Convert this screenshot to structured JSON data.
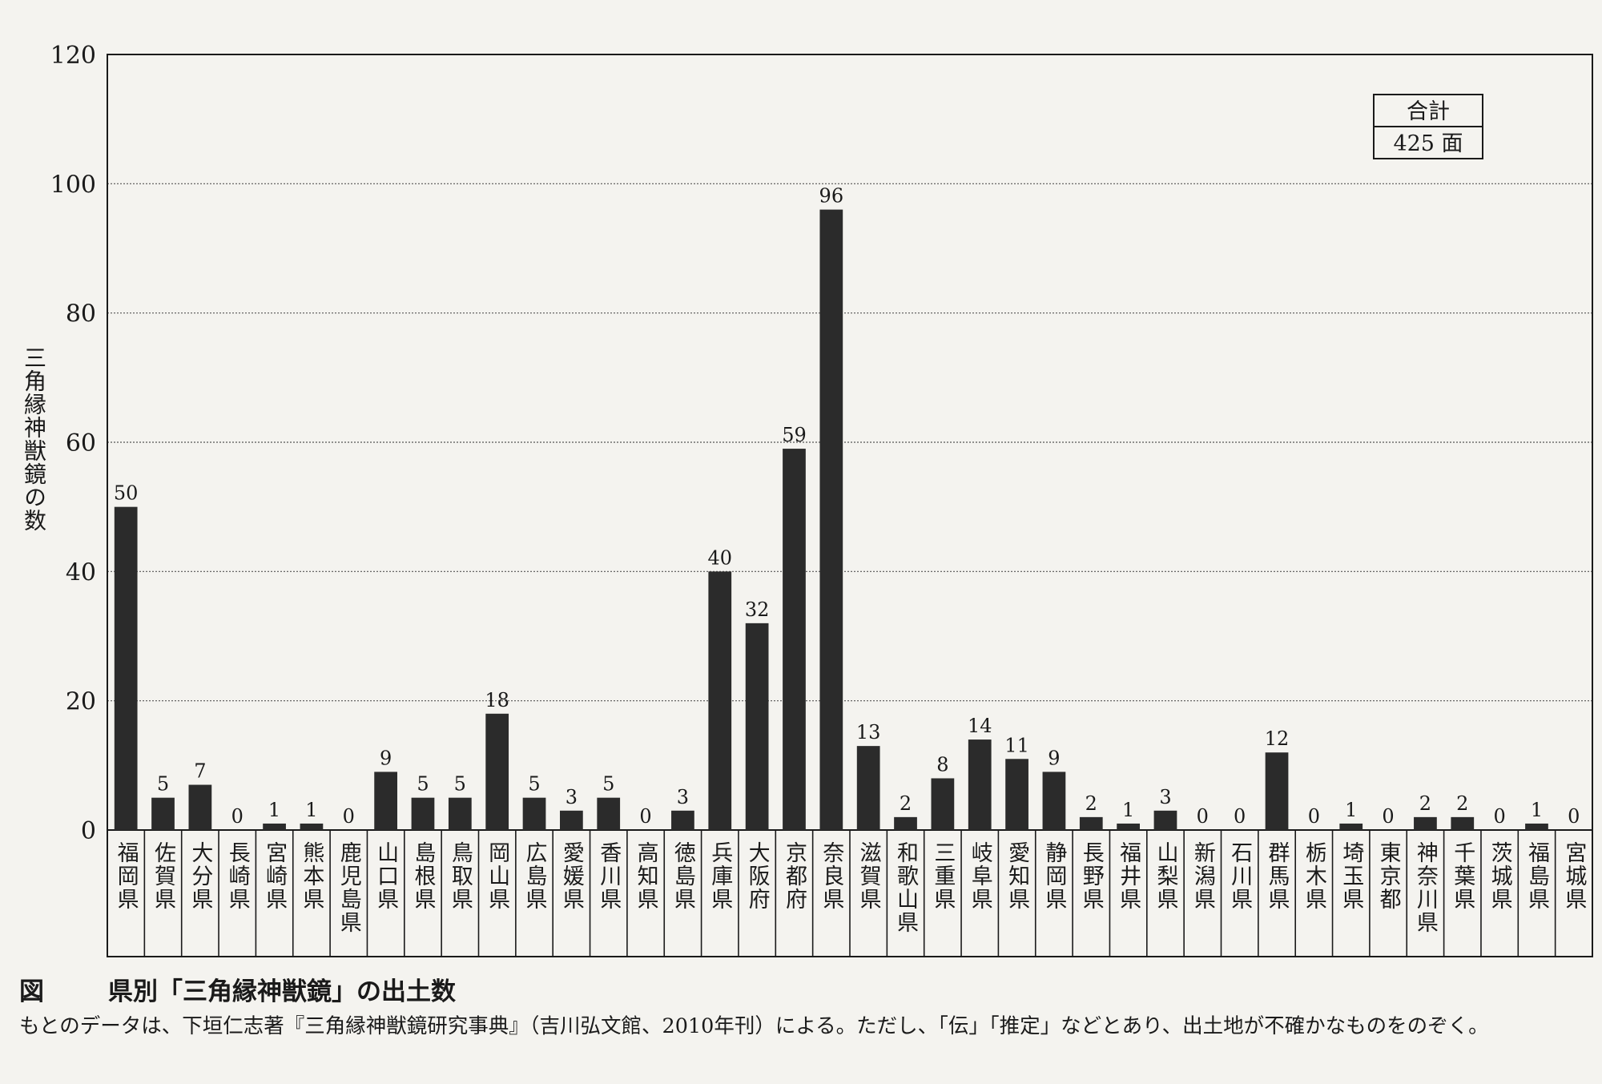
{
  "chart_data": {
    "type": "bar",
    "ylabel": "三角縁神獣鏡の数",
    "ylim": [
      0,
      120
    ],
    "yticks": [
      0,
      20,
      40,
      60,
      80,
      100,
      120
    ],
    "grid": true,
    "categories": [
      "福岡県",
      "佐賀県",
      "大分県",
      "長崎県",
      "宮崎県",
      "熊本県",
      "鹿児島県",
      "山口県",
      "島根県",
      "鳥取県",
      "岡山県",
      "広島県",
      "愛媛県",
      "香川県",
      "高知県",
      "徳島県",
      "兵庫県",
      "大阪府",
      "京都府",
      "奈良県",
      "滋賀県",
      "和歌山県",
      "三重県",
      "岐阜県",
      "愛知県",
      "静岡県",
      "長野県",
      "福井県",
      "山梨県",
      "新潟県",
      "石川県",
      "群馬県",
      "栃木県",
      "埼玉県",
      "東京都",
      "神奈川県",
      "千葉県",
      "茨城県",
      "福島県",
      "宮城県"
    ],
    "values": [
      50,
      5,
      7,
      0,
      1,
      1,
      0,
      9,
      5,
      5,
      18,
      5,
      3,
      5,
      0,
      3,
      40,
      32,
      59,
      96,
      13,
      2,
      8,
      14,
      11,
      9,
      2,
      1,
      3,
      0,
      0,
      12,
      0,
      1,
      0,
      2,
      2,
      0,
      1,
      0
    ],
    "total_box": {
      "label": "合計",
      "value": "425 面"
    },
    "bar_color": "#2b2b2b"
  },
  "caption": {
    "prefix": "図",
    "title": "県別「三角縁神獣鏡」の出土数"
  },
  "note": "もとのデータは、下垣仁志著『三角縁神獣鏡研究事典』（吉川弘文館、2010年刊）による。ただし、「伝」「推定」などとあり、出土地が不確かなものをのぞく。"
}
